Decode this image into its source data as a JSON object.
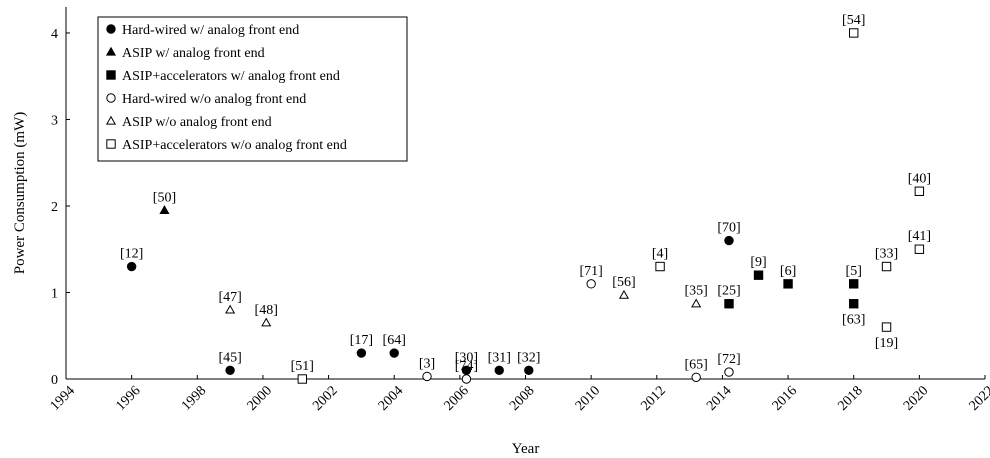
{
  "chart_data": {
    "type": "scatter",
    "xlabel": "Year",
    "ylabel": "Power Consumption (mW)",
    "xlim": [
      1994,
      2022
    ],
    "ylim": [
      0,
      4.3
    ],
    "x_ticks": [
      "1994",
      "1996",
      "1998",
      "2000",
      "2002",
      "2004",
      "2006",
      "2008",
      "2010",
      "2012",
      "2014",
      "2016",
      "2018",
      "2020",
      "2022"
    ],
    "y_ticks": [
      "0",
      "1",
      "2",
      "3",
      "4"
    ],
    "grid": false,
    "legend_position": "top-left",
    "series": [
      {
        "name": "Hard-wired w/ analog front end",
        "marker": "circle-filled",
        "points": [
          {
            "x": 1996,
            "y": 1.3,
            "label": "[12]"
          },
          {
            "x": 1999,
            "y": 0.1,
            "label": "[45]"
          },
          {
            "x": 2003,
            "y": 0.3,
            "label": "[17]"
          },
          {
            "x": 2004,
            "y": 0.3,
            "label": "[64]"
          },
          {
            "x": 2006.2,
            "y": 0.1,
            "label": "[30]"
          },
          {
            "x": 2007.2,
            "y": 0.1,
            "label": "[31]"
          },
          {
            "x": 2008.1,
            "y": 0.1,
            "label": "[32]"
          },
          {
            "x": 2014.2,
            "y": 1.6,
            "label": "[70]"
          }
        ]
      },
      {
        "name": "ASIP w/ analog front end",
        "marker": "triangle-filled",
        "points": [
          {
            "x": 1997,
            "y": 1.95,
            "label": "[50]"
          }
        ]
      },
      {
        "name": "ASIP+accelerators w/ analog front end",
        "marker": "square-filled",
        "points": [
          {
            "x": 2014.2,
            "y": 0.87,
            "label": "[25]"
          },
          {
            "x": 2015.1,
            "y": 1.2,
            "label": "[9]"
          },
          {
            "x": 2016,
            "y": 1.1,
            "label": "[6]"
          },
          {
            "x": 2018,
            "y": 1.1,
            "label": "[5]"
          },
          {
            "x": 2018,
            "y": 0.87,
            "label": "[63]"
          }
        ]
      },
      {
        "name": "Hard-wired w/o analog front end",
        "marker": "circle-open",
        "points": [
          {
            "x": 2005,
            "y": 0.03,
            "label": "[3]"
          },
          {
            "x": 2006.2,
            "y": 0.0,
            "label": "[74]"
          },
          {
            "x": 2010,
            "y": 1.1,
            "label": "[71]"
          },
          {
            "x": 2013.2,
            "y": 0.02,
            "label": "[65]"
          },
          {
            "x": 2014.2,
            "y": 0.08,
            "label": "[72]"
          }
        ]
      },
      {
        "name": "ASIP w/o analog front end",
        "marker": "triangle-open",
        "points": [
          {
            "x": 1999,
            "y": 0.8,
            "label": "[47]"
          },
          {
            "x": 2000.1,
            "y": 0.65,
            "label": "[48]"
          },
          {
            "x": 2011,
            "y": 0.97,
            "label": "[56]"
          },
          {
            "x": 2013.2,
            "y": 0.87,
            "label": "[35]"
          }
        ]
      },
      {
        "name": "ASIP+accelerators w/o analog front end",
        "marker": "square-open",
        "points": [
          {
            "x": 2001.2,
            "y": 0.0,
            "label": "[51]"
          },
          {
            "x": 2012.1,
            "y": 1.3,
            "label": "[4]"
          },
          {
            "x": 2018,
            "y": 4.0,
            "label": "[54]"
          },
          {
            "x": 2019,
            "y": 1.3,
            "label": "[33]"
          },
          {
            "x": 2019,
            "y": 0.6,
            "label": "[19]"
          },
          {
            "x": 2020,
            "y": 2.17,
            "label": "[40]"
          },
          {
            "x": 2020,
            "y": 1.5,
            "label": "[41]"
          }
        ]
      }
    ]
  }
}
